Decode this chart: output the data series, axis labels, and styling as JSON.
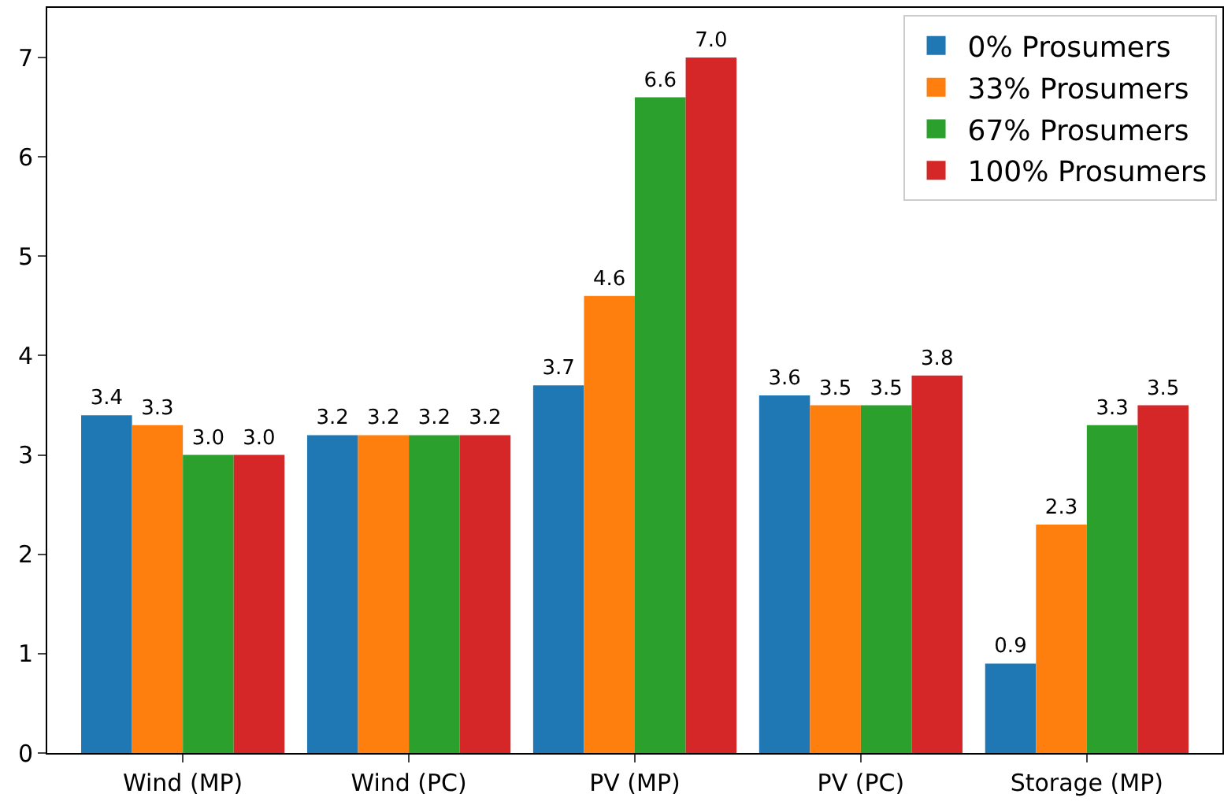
{
  "chart_data": {
    "type": "bar",
    "categories": [
      "Wind (MP)",
      "Wind (PC)",
      "PV (MP)",
      "PV (PC)",
      "Storage (MP)"
    ],
    "series": [
      {
        "name": "0% Prosumers",
        "color": "#1f77b4",
        "values": [
          3.4,
          3.2,
          3.7,
          3.6,
          0.9
        ],
        "value_labels": [
          "3.4",
          "3.2",
          "3.7",
          "3.6",
          "0.9"
        ]
      },
      {
        "name": "33% Prosumers",
        "color": "#ff7f0e",
        "values": [
          3.3,
          3.2,
          4.6,
          3.5,
          2.3
        ],
        "value_labels": [
          "3.3",
          "3.2",
          "4.6",
          "3.5",
          "2.3"
        ]
      },
      {
        "name": "67% Prosumers",
        "color": "#2ca02c",
        "values": [
          3.0,
          3.2,
          6.6,
          3.5,
          3.3
        ],
        "value_labels": [
          "3.0",
          "3.2",
          "6.6",
          "3.5",
          "3.3"
        ]
      },
      {
        "name": "100% Prosumers",
        "color": "#d62728",
        "values": [
          3.0,
          3.2,
          7.0,
          3.8,
          3.5
        ],
        "value_labels": [
          "3.0",
          "3.2",
          "7.0",
          "3.8",
          "3.5"
        ]
      }
    ],
    "ylim": [
      0,
      7.5
    ],
    "yticks": [
      0,
      1,
      2,
      3,
      4,
      5,
      6,
      7
    ],
    "legend": "top right"
  }
}
